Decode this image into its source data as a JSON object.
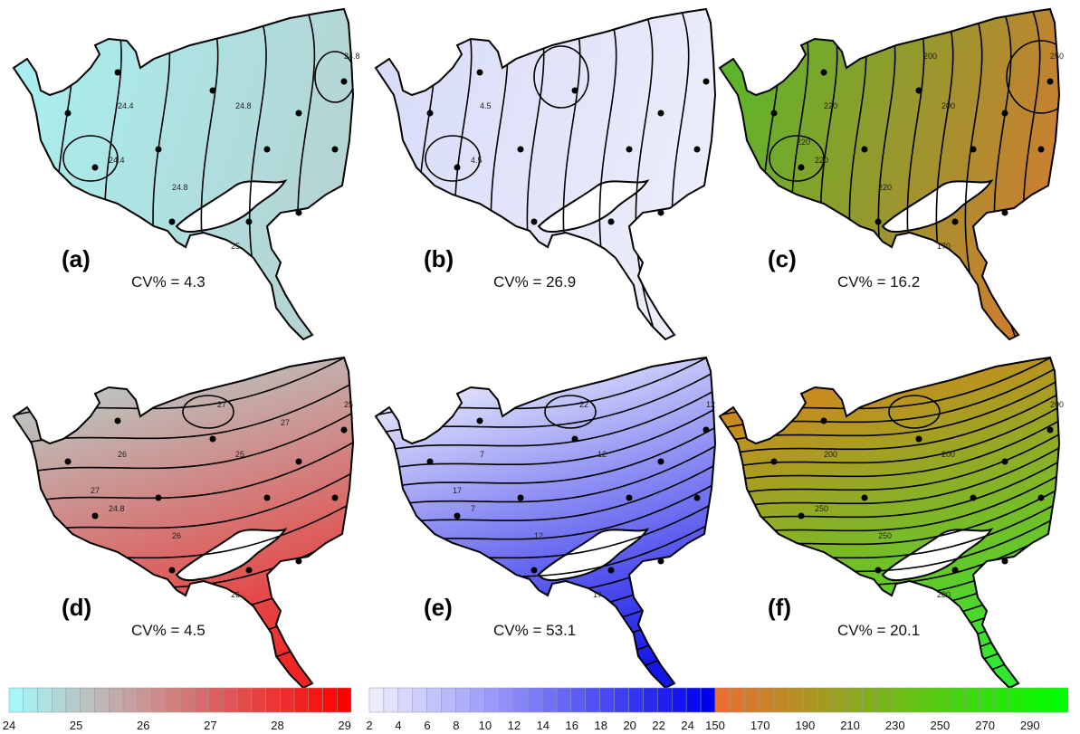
{
  "panels": [
    {
      "label": "(a)",
      "cv": "CV% = 4.3",
      "fill": [
        "#a8eeee",
        "#b6d2d2"
      ],
      "contour_labels": [
        "24.4",
        "24.4",
        "24.8",
        "24.8",
        "24.8",
        "25"
      ]
    },
    {
      "label": "(b)",
      "cv": "CV% = 26.9",
      "fill": [
        "#d8dcf8",
        "#eceefb"
      ],
      "contour_labels": [
        "4.5",
        "4.5"
      ]
    },
    {
      "label": "(c)",
      "cv": "CV% = 16.2",
      "fill": [
        "#5cb52a",
        "#d07c30"
      ],
      "contour_labels": [
        "220",
        "220",
        "200",
        "250",
        "220",
        "170",
        "220",
        "200"
      ]
    },
    {
      "label": "(d)",
      "cv": "CV% = 4.5",
      "fill": [
        "#b8d0cc",
        "#f02424"
      ],
      "contour_labels": [
        "26",
        "24.8",
        "25",
        "25",
        "26",
        "26",
        "27",
        "27",
        "27"
      ]
    },
    {
      "label": "(e)",
      "cv": "CV% = 53.1",
      "fill": [
        "#eceefc",
        "#1515e8"
      ],
      "contour_labels": [
        "7",
        "7",
        "12",
        "12",
        "12",
        "17",
        "17",
        "22"
      ]
    },
    {
      "label": "(f)",
      "cv": "CV% = 20.1",
      "fill": [
        "#d8801c",
        "#30e830"
      ],
      "contour_labels": [
        "200",
        "250",
        "200",
        "200",
        "250",
        "280"
      ]
    }
  ],
  "colorbars": [
    {
      "colors": [
        "#a6f6f6",
        "#ff0000"
      ],
      "lim": [
        24,
        29.1
      ],
      "ticks": [
        24,
        25,
        26,
        27,
        28,
        29
      ]
    },
    {
      "colors": [
        "#ececfc",
        "#0000f0"
      ],
      "lim": [
        2,
        25.9
      ],
      "ticks": [
        2,
        4,
        6,
        8,
        10,
        12,
        14,
        16,
        18,
        20,
        22,
        24
      ]
    },
    {
      "colors": [
        "#e87030",
        "#00ff00"
      ],
      "lim": [
        150,
        307
      ],
      "ticks": [
        150,
        170,
        190,
        210,
        230,
        250,
        270,
        290
      ]
    }
  ]
}
